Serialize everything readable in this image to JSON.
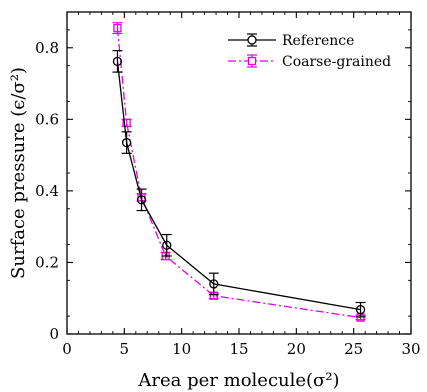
{
  "chart_data": {
    "type": "line",
    "xlabel": "Area per molecule(σ²)",
    "ylabel": "Surface pressure (ϵ/σ²)",
    "xlim": [
      0,
      30
    ],
    "ylim": [
      0,
      0.9
    ],
    "xticks": [
      "0",
      "5",
      "10",
      "15",
      "20",
      "25",
      "30"
    ],
    "yticks": [
      "0",
      "0.2",
      "0.4",
      "0.6",
      "0.8"
    ],
    "xtick_values": [
      0,
      5,
      10,
      15,
      20,
      25,
      30
    ],
    "ytick_values": [
      0,
      0.2,
      0.4,
      0.6,
      0.8
    ],
    "grid": false,
    "legend_position": "top-right",
    "series": [
      {
        "name": "Reference",
        "color": "#000000",
        "line": "solid",
        "marker": "circle",
        "x": [
          4.4,
          5.2,
          6.5,
          8.7,
          12.8,
          25.6
        ],
        "y": [
          0.762,
          0.535,
          0.375,
          0.248,
          0.14,
          0.068
        ],
        "err": [
          0.03,
          0.03,
          0.03,
          0.03,
          0.03,
          0.02
        ]
      },
      {
        "name": "Coarse-grained",
        "color": "#e400e4",
        "line": "dashdot",
        "marker": "square",
        "x": [
          4.4,
          5.2,
          6.5,
          8.6,
          12.8,
          25.6
        ],
        "y": [
          0.855,
          0.59,
          0.382,
          0.218,
          0.107,
          0.046
        ],
        "err": [
          0.015,
          0.01,
          0.01,
          0.01,
          0.008,
          0.006
        ]
      }
    ]
  }
}
